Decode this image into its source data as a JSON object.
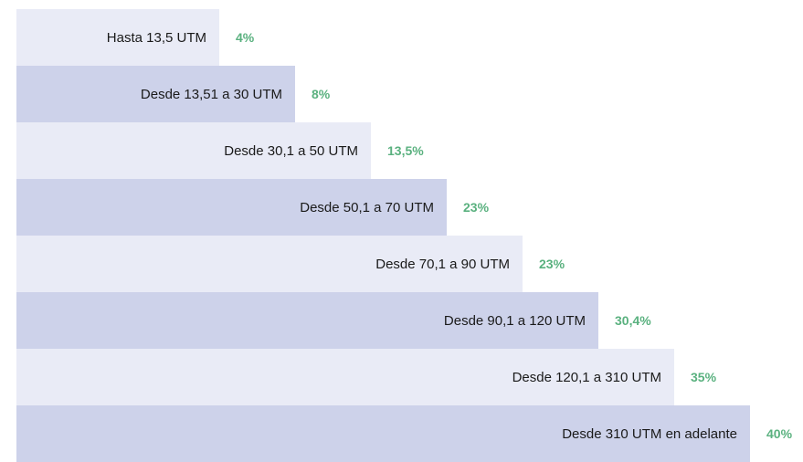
{
  "rows": [
    {
      "label": "Hasta 13,5 UTM",
      "value": "4%"
    },
    {
      "label": "Desde 13,51 a 30 UTM",
      "value": "8%"
    },
    {
      "label": "Desde 30,1 a 50 UTM",
      "value": "13,5%"
    },
    {
      "label": "Desde 50,1 a 70 UTM",
      "value": "23%"
    },
    {
      "label": "Desde 70,1 a 90 UTM",
      "value": "23%"
    },
    {
      "label": "Desde 90,1 a 120 UTM",
      "value": "30,4%"
    },
    {
      "label": "Desde 120,1 a 310 UTM",
      "value": "35%"
    },
    {
      "label": "Desde 310 UTM en adelante",
      "value": "40%"
    }
  ]
}
